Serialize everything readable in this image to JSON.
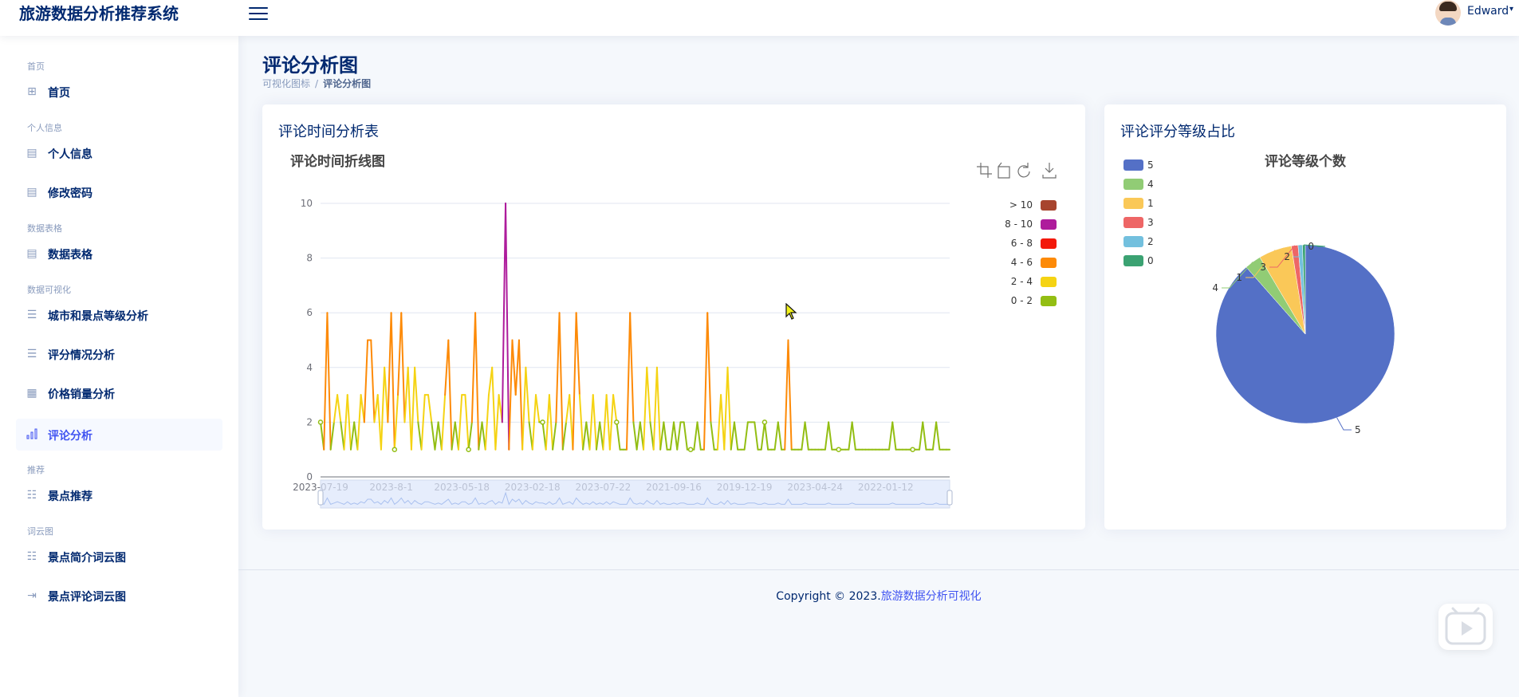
{
  "header": {
    "brand": "旅游数据分析推荐系统",
    "username": "Edward",
    "colors": {
      "brand": "#012970",
      "accent": "#4154f1"
    }
  },
  "sidebar": {
    "sections": [
      {
        "heading": "首页",
        "items": [
          {
            "label": "首页",
            "icon": "grid-icon",
            "active": false
          }
        ]
      },
      {
        "heading": "个人信息",
        "items": [
          {
            "label": "个人信息",
            "icon": "layout-icon",
            "active": false
          },
          {
            "label": "修改密码",
            "icon": "layout-icon",
            "active": false
          }
        ]
      },
      {
        "heading": "数据表格",
        "items": [
          {
            "label": "数据表格",
            "icon": "layout-icon",
            "active": false
          }
        ]
      },
      {
        "heading": "数据可视化",
        "items": [
          {
            "label": "城市和景点等级分析",
            "icon": "document-icon",
            "active": false
          },
          {
            "label": "评分情况分析",
            "icon": "document-icon",
            "active": false
          },
          {
            "label": "价格销量分析",
            "icon": "table-icon",
            "active": false
          },
          {
            "label": "评论分析",
            "icon": "bar-chart-icon",
            "active": true
          }
        ]
      },
      {
        "heading": "推荐",
        "items": [
          {
            "label": "景点推荐",
            "icon": "list-icon",
            "active": false
          }
        ]
      },
      {
        "heading": "词云图",
        "items": [
          {
            "label": "景点简介词云图",
            "icon": "list-icon",
            "active": false
          },
          {
            "label": "景点评论词云图",
            "icon": "login-icon",
            "active": false
          }
        ]
      }
    ]
  },
  "main": {
    "page_title": "评论分析图",
    "breadcrumb": [
      "可视化图标",
      "评论分析图"
    ]
  },
  "cards": {
    "time": {
      "title": "评论时间分析表"
    },
    "ratio": {
      "title": "评论评分等级占比"
    }
  },
  "footer": {
    "prefix": "Copyright © 2023.",
    "link": "旅游数据分析可视化"
  },
  "chart_data": [
    {
      "type": "line",
      "title": "评论时间折线图",
      "toolbox": [
        "zoom-icon",
        "zoom-reset-icon",
        "restore-icon",
        "download-icon"
      ],
      "ylim": [
        0,
        10
      ],
      "yticks": [
        0,
        2,
        4,
        6,
        8,
        10
      ],
      "xtick_labels": [
        "2023-07-19",
        "2023-8-1",
        "2023-05-18",
        "2023-02-18",
        "2023-07-22",
        "2021-09-16",
        "2019-12-19",
        "2023-04-24",
        "2022-01-12"
      ],
      "grid": true,
      "legend_position": "top-right",
      "visual_map": [
        {
          "label": "> 10",
          "color": "#a7442e"
        },
        {
          "label": "8 - 10",
          "color": "#ae1c9c"
        },
        {
          "label": "6 - 8",
          "color": "#f3180a"
        },
        {
          "label": "4 - 6",
          "color": "#fd8a07"
        },
        {
          "label": "2 - 4",
          "color": "#f5d313"
        },
        {
          "label": "0 - 2",
          "color": "#93be13"
        }
      ],
      "series": [
        {
          "values": [
            2,
            1,
            6,
            1,
            2,
            3,
            2,
            1,
            3,
            1,
            2,
            1,
            3,
            2,
            5,
            5,
            2,
            3,
            1,
            4,
            2,
            6,
            1,
            3,
            6,
            2,
            4,
            1,
            4,
            2,
            1,
            3,
            3,
            2,
            1,
            2,
            1,
            3,
            5,
            1,
            2,
            1,
            3,
            3,
            1,
            2,
            6,
            1,
            2,
            1,
            3,
            4,
            1,
            3,
            2,
            10,
            1,
            5,
            3,
            5,
            1,
            4,
            2,
            1,
            3,
            2,
            2,
            1,
            3,
            1,
            2,
            6,
            1,
            2,
            3,
            1,
            6,
            3,
            1,
            2,
            1,
            3,
            1,
            2,
            1,
            3,
            1,
            3,
            2,
            1,
            1,
            1,
            6,
            2,
            1,
            2,
            1,
            4,
            2,
            1,
            4,
            1,
            2,
            1,
            1,
            2,
            1,
            2,
            2,
            1,
            1,
            1,
            2,
            1,
            1,
            6,
            2,
            1,
            1,
            3,
            1,
            4,
            1,
            2,
            1,
            1,
            1,
            2,
            2,
            2,
            1,
            1,
            2,
            1,
            1,
            1,
            2,
            1,
            1,
            5,
            1,
            1,
            1,
            1,
            2,
            1,
            1,
            1,
            1,
            1,
            1,
            2,
            1,
            1,
            1,
            1,
            1,
            1,
            2,
            1,
            1,
            1,
            1,
            1,
            1,
            1,
            1,
            1,
            1,
            1,
            2,
            1,
            1,
            1,
            1,
            1,
            1,
            1,
            1,
            2,
            1,
            1,
            1,
            2,
            1,
            1,
            1,
            1
          ]
        }
      ]
    },
    {
      "type": "pie",
      "title": "评论等级个数",
      "legend_position": "top-left",
      "slices": [
        {
          "name": "5",
          "value": 88.5,
          "color": "#5470c6"
        },
        {
          "name": "4",
          "value": 3.0,
          "color": "#91cc75"
        },
        {
          "name": "1",
          "value": 6.0,
          "color": "#fac858"
        },
        {
          "name": "3",
          "value": 1.2,
          "color": "#ee6666"
        },
        {
          "name": "2",
          "value": 0.8,
          "color": "#73c0de"
        },
        {
          "name": "0",
          "value": 0.5,
          "color": "#3ba272"
        }
      ]
    }
  ]
}
